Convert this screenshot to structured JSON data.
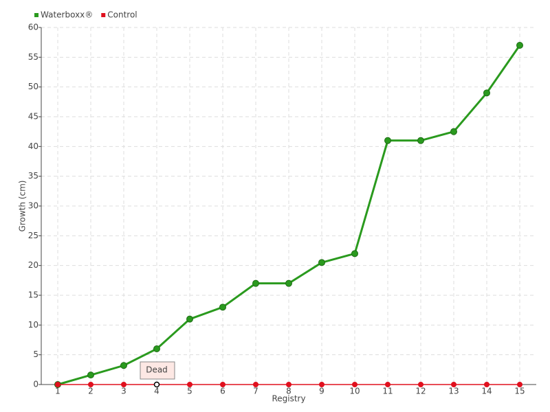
{
  "chart_data": {
    "type": "line",
    "title_none": null,
    "x_label": "Registry",
    "y_label": "Growth (cm)",
    "categories": [
      "1",
      "2",
      "3",
      "4",
      "5",
      "6",
      "7",
      "8",
      "9",
      "10",
      "11",
      "12",
      "13",
      "14",
      "15"
    ],
    "series": [
      {
        "name": "Waterboxx®",
        "color": "#2a9a1e",
        "values": [
          0,
          1.6,
          3.2,
          6,
          11,
          13,
          17,
          17,
          20.5,
          22,
          41,
          41,
          42.5,
          49,
          57
        ]
      },
      {
        "name": "Control",
        "color": "#e0101e",
        "values": [
          0,
          0,
          0,
          0,
          0,
          0,
          0,
          0,
          0,
          0,
          0,
          0,
          0,
          0,
          0
        ]
      }
    ],
    "ylim": [
      0,
      60
    ],
    "yticks": [
      0,
      5,
      10,
      15,
      20,
      25,
      30,
      35,
      40,
      45,
      50,
      55,
      60
    ],
    "grid": true,
    "legend": "top-left",
    "annotations": [
      {
        "text": "Dead",
        "category": "4"
      }
    ]
  }
}
